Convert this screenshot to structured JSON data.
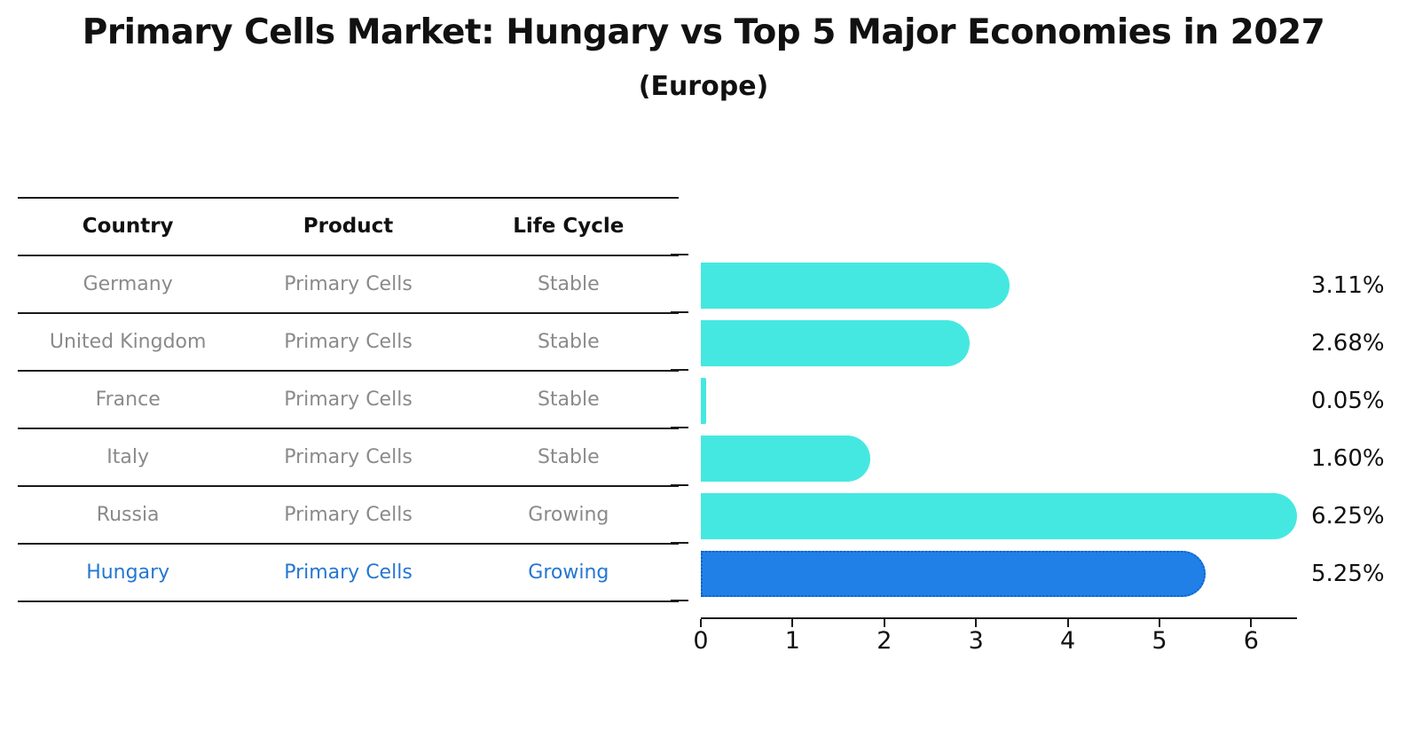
{
  "title": "Primary Cells Market: Hungary vs Top 5 Major Economies in 2027",
  "subtitle": "(Europe)",
  "table": {
    "headers": [
      "Country",
      "Product",
      "Life Cycle"
    ],
    "rows": [
      {
        "country": "Germany",
        "product": "Primary Cells",
        "life_cycle": "Stable",
        "highlight": false
      },
      {
        "country": "United Kingdom",
        "product": "Primary Cells",
        "life_cycle": "Stable",
        "highlight": false
      },
      {
        "country": "France",
        "product": "Primary Cells",
        "life_cycle": "Stable",
        "highlight": false
      },
      {
        "country": "Italy",
        "product": "Primary Cells",
        "life_cycle": "Stable",
        "highlight": false
      },
      {
        "country": "Russia",
        "product": "Primary Cells",
        "life_cycle": "Growing",
        "highlight": false
      },
      {
        "country": "Hungary",
        "product": "Primary Cells",
        "life_cycle": "Growing",
        "highlight": true
      }
    ]
  },
  "chart_data": {
    "type": "bar",
    "orientation": "horizontal",
    "categories": [
      "Germany",
      "United Kingdom",
      "France",
      "Italy",
      "Russia",
      "Hungary"
    ],
    "values": [
      3.11,
      2.68,
      0.05,
      1.6,
      6.25,
      5.25
    ],
    "value_labels": [
      "3.11%",
      "2.68%",
      "0.05%",
      "1.60%",
      "6.25%",
      "5.25%"
    ],
    "title": "Primary Cells Market: Hungary vs Top 5 Major Economies in 2027 (Europe)",
    "xlabel": "",
    "ylabel": "",
    "xlim": [
      0,
      6.5
    ],
    "xticks": [
      "0",
      "1",
      "2",
      "3",
      "4",
      "5",
      "6"
    ],
    "grid": false,
    "legend": "none",
    "bar_color": "#45e8e1",
    "highlight_color": "#2080e8",
    "highlight_index": 5,
    "highlight_text_color": "#2577d2"
  }
}
